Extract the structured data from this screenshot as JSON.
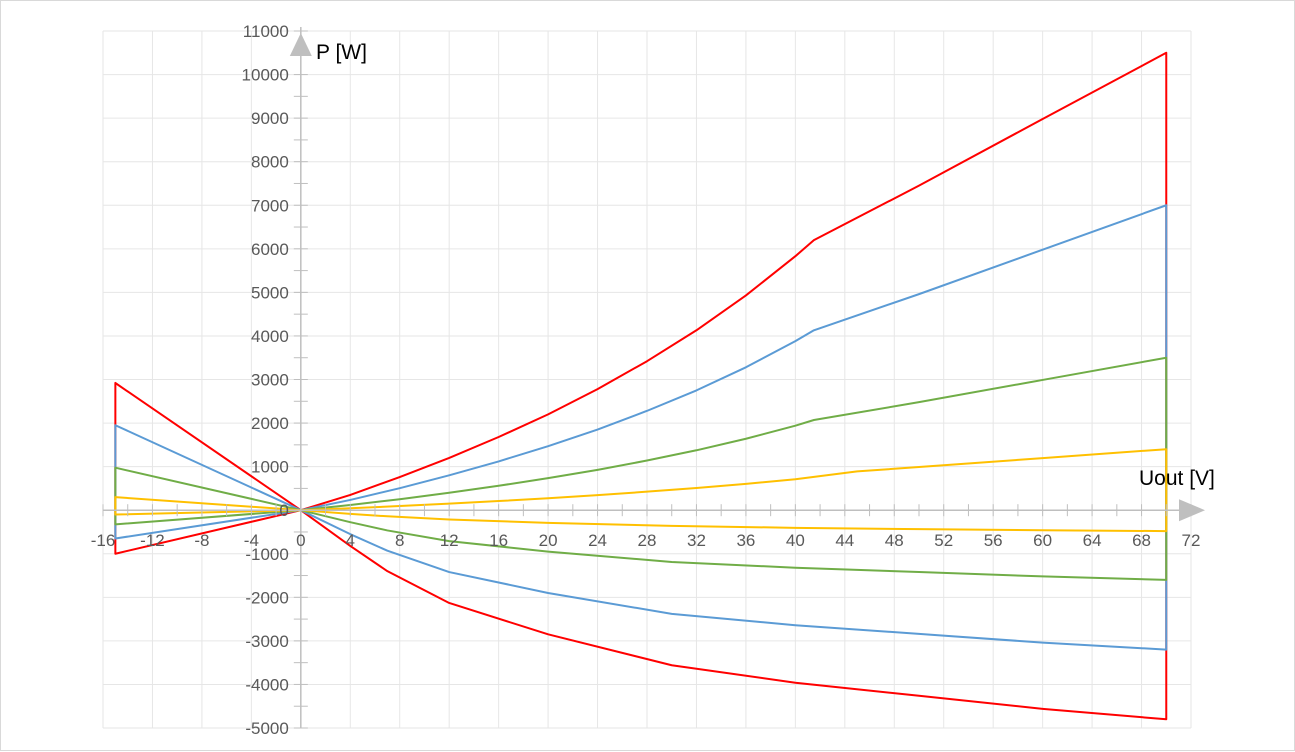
{
  "chart_data": {
    "type": "line",
    "title": "",
    "xlabel": "Uout [V]",
    "ylabel": "P [W]",
    "xlim": [
      -16,
      72
    ],
    "ylim": [
      -5000,
      11000
    ],
    "x_major_step": 4,
    "y_major_step": 1000,
    "grid": true,
    "legend": "none",
    "x_ticks": [
      "-16",
      "-12",
      "-8",
      "-4",
      "0",
      "4",
      "8",
      "12",
      "16",
      "20",
      "24",
      "28",
      "32",
      "36",
      "40",
      "44",
      "48",
      "52",
      "56",
      "60",
      "64",
      "68",
      "72"
    ],
    "y_ticks": [
      "-5000",
      "-4000",
      "-3000",
      "-2000",
      "-1000",
      "0",
      "1000",
      "2000",
      "3000",
      "4000",
      "5000",
      "6000",
      "7000",
      "8000",
      "9000",
      "10000",
      "11000"
    ],
    "series": [
      {
        "color": "#FF0000",
        "points": [
          [
            0,
            0
          ],
          [
            4,
            350
          ],
          [
            8,
            760
          ],
          [
            12,
            1200
          ],
          [
            16,
            1680
          ],
          [
            20,
            2200
          ],
          [
            24,
            2780
          ],
          [
            28,
            3420
          ],
          [
            32,
            4130
          ],
          [
            36,
            4930
          ],
          [
            40,
            5830
          ],
          [
            41.5,
            6200
          ],
          [
            50,
            7450
          ],
          [
            60,
            8980
          ],
          [
            70,
            10500
          ],
          [
            70,
            -4800
          ],
          [
            60,
            -4560
          ],
          [
            50,
            -4260
          ],
          [
            40,
            -3960
          ],
          [
            30,
            -3560
          ],
          [
            20,
            -2850
          ],
          [
            12,
            -2130
          ],
          [
            7,
            -1400
          ],
          [
            4,
            -820
          ],
          [
            0,
            0
          ],
          [
            -15,
            2920
          ],
          [
            -15,
            -1000
          ],
          [
            0,
            0
          ]
        ]
      },
      {
        "color": "#5B9BD5",
        "points": [
          [
            0,
            0
          ],
          [
            4,
            235
          ],
          [
            8,
            505
          ],
          [
            12,
            800
          ],
          [
            16,
            1120
          ],
          [
            20,
            1470
          ],
          [
            24,
            1850
          ],
          [
            28,
            2280
          ],
          [
            32,
            2750
          ],
          [
            36,
            3280
          ],
          [
            40,
            3880
          ],
          [
            41.5,
            4130
          ],
          [
            50,
            4960
          ],
          [
            60,
            5980
          ],
          [
            70,
            7000
          ],
          [
            70,
            -3200
          ],
          [
            60,
            -3040
          ],
          [
            50,
            -2840
          ],
          [
            40,
            -2640
          ],
          [
            30,
            -2380
          ],
          [
            20,
            -1900
          ],
          [
            12,
            -1420
          ],
          [
            7,
            -930
          ],
          [
            4,
            -550
          ],
          [
            0,
            0
          ],
          [
            -15,
            1950
          ],
          [
            -15,
            -650
          ],
          [
            0,
            0
          ]
        ]
      },
      {
        "color": "#70AD47",
        "points": [
          [
            0,
            0
          ],
          [
            4,
            118
          ],
          [
            8,
            252
          ],
          [
            12,
            400
          ],
          [
            16,
            560
          ],
          [
            20,
            735
          ],
          [
            24,
            925
          ],
          [
            28,
            1140
          ],
          [
            32,
            1375
          ],
          [
            36,
            1640
          ],
          [
            40,
            1940
          ],
          [
            41.5,
            2070
          ],
          [
            50,
            2480
          ],
          [
            60,
            2990
          ],
          [
            70,
            3500
          ],
          [
            70,
            -1600
          ],
          [
            60,
            -1520
          ],
          [
            50,
            -1420
          ],
          [
            40,
            -1320
          ],
          [
            30,
            -1190
          ],
          [
            20,
            -950
          ],
          [
            12,
            -710
          ],
          [
            7,
            -465
          ],
          [
            4,
            -275
          ],
          [
            0,
            0
          ],
          [
            -15,
            975
          ],
          [
            -15,
            -325
          ],
          [
            0,
            0
          ]
        ]
      },
      {
        "color": "#FFC000",
        "points": [
          [
            0,
            0
          ],
          [
            4,
            45
          ],
          [
            8,
            95
          ],
          [
            12,
            150
          ],
          [
            16,
            210
          ],
          [
            20,
            275
          ],
          [
            24,
            345
          ],
          [
            28,
            425
          ],
          [
            32,
            510
          ],
          [
            36,
            605
          ],
          [
            40,
            710
          ],
          [
            45,
            890
          ],
          [
            50,
            990
          ],
          [
            60,
            1195
          ],
          [
            70,
            1400
          ],
          [
            70,
            -480
          ],
          [
            60,
            -460
          ],
          [
            50,
            -435
          ],
          [
            40,
            -405
          ],
          [
            30,
            -360
          ],
          [
            20,
            -290
          ],
          [
            12,
            -215
          ],
          [
            7,
            -140
          ],
          [
            4,
            -85
          ],
          [
            0,
            0
          ],
          [
            -15,
            300
          ],
          [
            -15,
            -100
          ],
          [
            0,
            0
          ]
        ]
      }
    ]
  }
}
